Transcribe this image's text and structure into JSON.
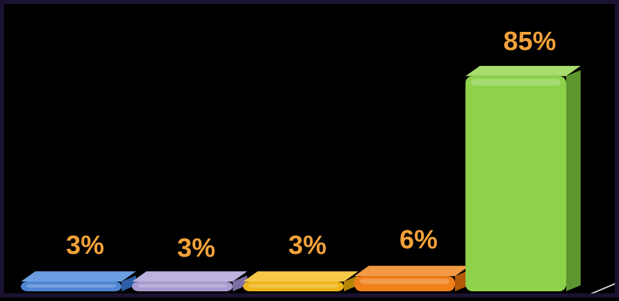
{
  "chart_data": {
    "type": "bar",
    "categories": [
      "",
      "",
      "",
      "",
      ""
    ],
    "values": [
      3,
      3,
      3,
      6,
      85
    ],
    "data_labels": [
      "3%",
      "3%",
      "3%",
      "6%",
      "85%"
    ],
    "value_unit": "%",
    "ylim": [
      0,
      100
    ],
    "grid": false,
    "legend": "none",
    "three_d": true,
    "colors": {
      "bars": [
        "#4f86d4",
        "#a99bd0",
        "#efb51c",
        "#f0801a",
        "#8ed14a"
      ],
      "bars_side": [
        "#2e5ea6",
        "#7a6ea3",
        "#b78608",
        "#b35a08",
        "#5e9630"
      ],
      "bars_top": [
        "#6a9ee0",
        "#bdb1dd",
        "#f6c84a",
        "#f39a45",
        "#a7dd6d"
      ],
      "label": "#f2a23a",
      "background": "#000000",
      "floor": "#d8d8d8"
    }
  }
}
